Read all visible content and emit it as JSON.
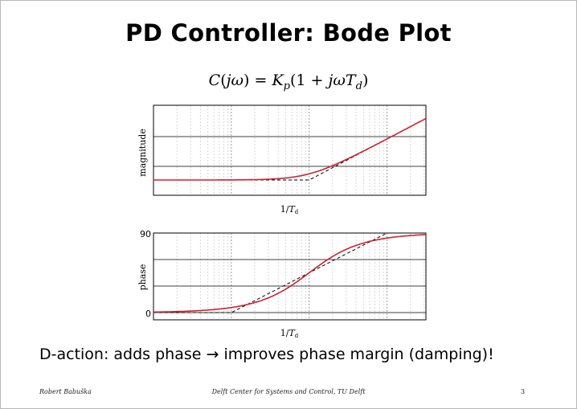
{
  "slide": {
    "title": "PD Controller: Bode Plot",
    "formula": {
      "C": "C",
      "j": "j",
      "omega": "ω",
      "eq": "=",
      "K": "K",
      "p": "p",
      "one": "1",
      "plus": "+",
      "T": "T",
      "d": "d"
    },
    "bottom_text": "D-action: adds phase → improves phase margin (damping)!",
    "footer": {
      "author": "Robert Babuška",
      "institute": "Delft Center for Systems and Control, TU Delft",
      "page": "3"
    }
  },
  "chart_data": [
    {
      "type": "line",
      "ylabel": "magnitude",
      "xlabel_parts": {
        "num": "1/",
        "T": "T",
        "sub": "d"
      },
      "x_scale": "log",
      "x_range_decades": [
        -2,
        1.5
      ],
      "grid": true,
      "y_ticks": [],
      "series": [
        {
          "values_description": "|1 + jωTd|, flat at low frequency then rising with +1 slope",
          "color": "#cc2233"
        },
        {
          "values_description": "asymptote",
          "color": "#000000",
          "dashed": true
        }
      ]
    },
    {
      "type": "line",
      "ylabel": "phase",
      "xlabel_parts": {
        "num": "1/",
        "T": "T",
        "sub": "d"
      },
      "x_scale": "log",
      "x_range_decades": [
        -2,
        1.5
      ],
      "ylim": [
        0,
        90
      ],
      "y_ticks": [
        "0",
        "90"
      ],
      "grid": true,
      "series": [
        {
          "color": "#cc2233"
        },
        {
          "color": "#000000",
          "dashed": true
        }
      ]
    }
  ]
}
